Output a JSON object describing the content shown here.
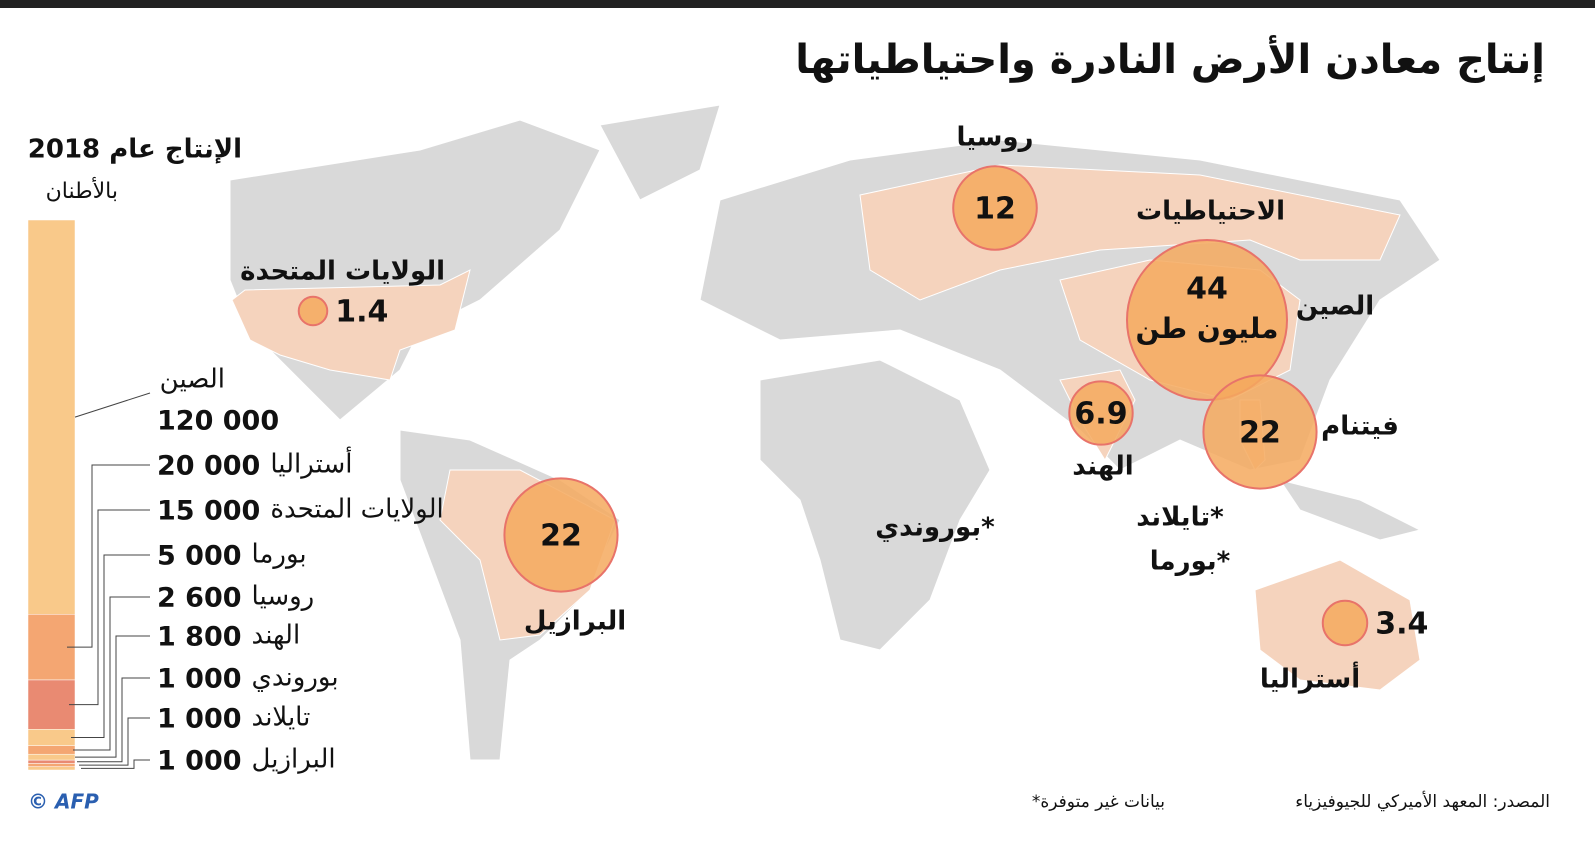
{
  "title": "إنتاج معادن الأرض النادرة واحتياطياتها",
  "chart_data": [
    {
      "type": "bubble-map",
      "title": "الاحتياطيات",
      "unit": "مليون طن",
      "categories": [
        "روسيا",
        "الولايات المتحدة",
        "الصين",
        "فيتنام",
        "الهند",
        "البرازيل",
        "أستراليا"
      ],
      "values": [
        12,
        1.4,
        44,
        22,
        6.9,
        22,
        3.4
      ],
      "color": "#f4a95e",
      "stroke": "#e8736a",
      "no_data": [
        "بوروندي*",
        "تايلاند*",
        "بورما*"
      ]
    },
    {
      "type": "stacked-bar",
      "title": "الإنتاج عام 2018",
      "unit": "بالأطنان",
      "categories": [
        "الصين",
        "أستراليا",
        "الولايات المتحدة",
        "بورما",
        "روسيا",
        "الهند",
        "بوروندي",
        "تايلاند",
        "البرازيل"
      ],
      "values": [
        120000,
        20000,
        15000,
        5000,
        2600,
        1800,
        1000,
        1000,
        1000
      ],
      "value_labels": [
        "120 000",
        "20 000",
        "15 000",
        "5 000",
        "2 600",
        "1 800",
        "1 000",
        "1 000",
        "1 000"
      ],
      "colors": [
        "#f9c98a",
        "#f4a672",
        "#e98a72",
        "#f9c98a",
        "#f4a672",
        "#f9c98a",
        "#e98a72",
        "#f4a672",
        "#f9c98a"
      ]
    }
  ],
  "notes": "*بيانات غير متوفرة",
  "source": "المصدر: المعهد الأميركي للجيوفيزياء",
  "credit": "© AFP"
}
